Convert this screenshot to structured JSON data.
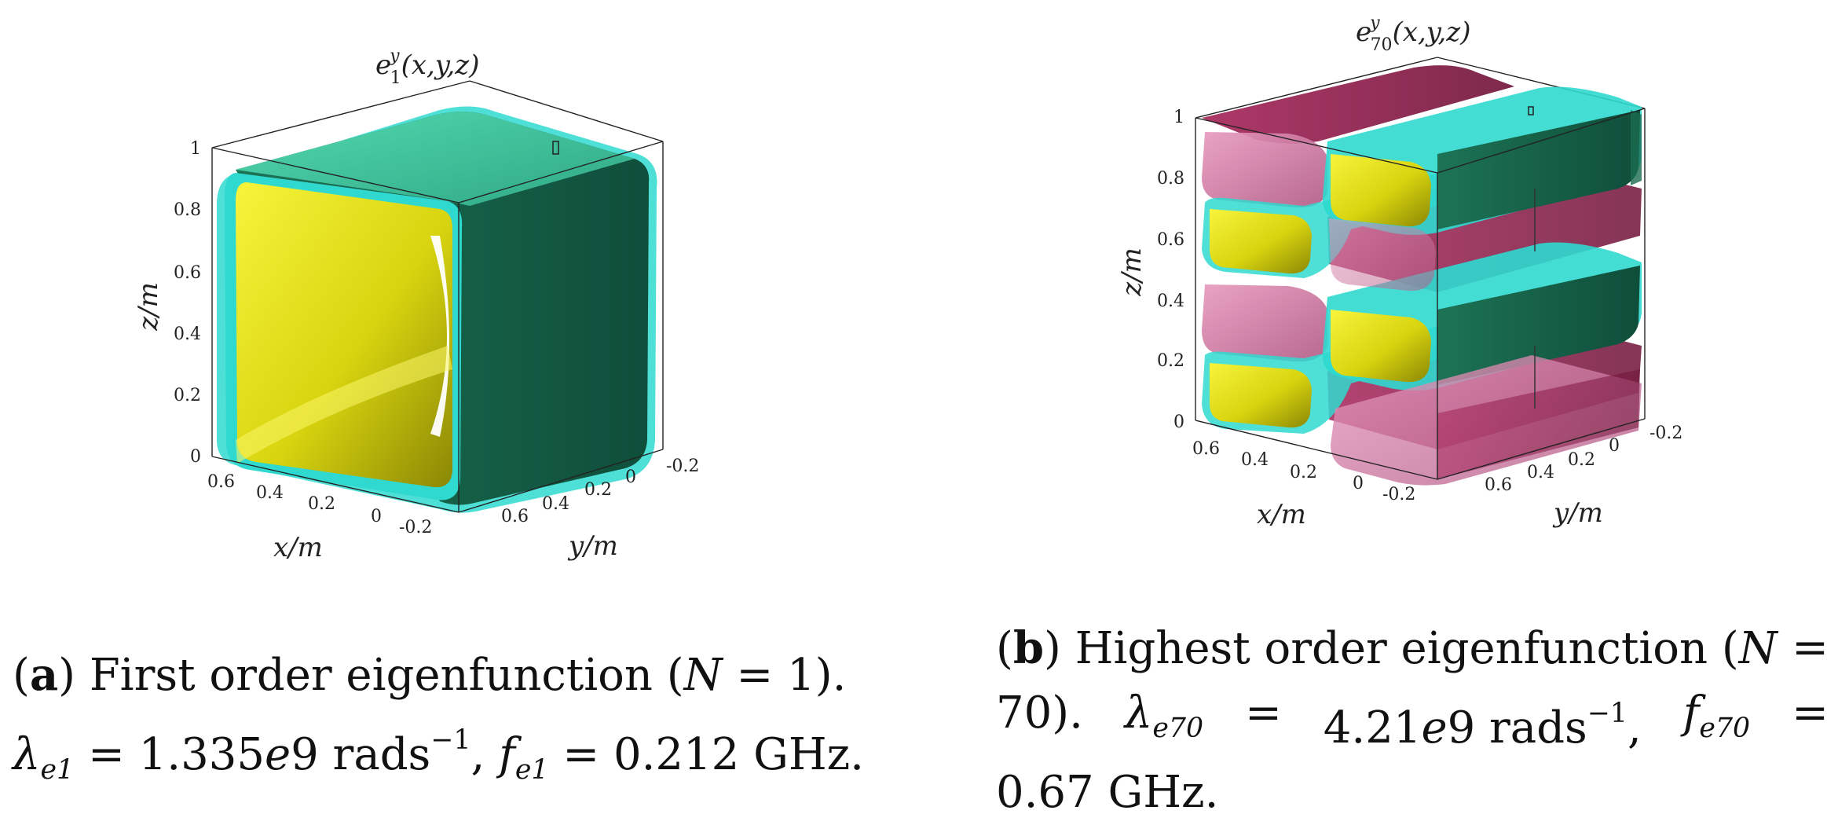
{
  "panels": [
    {
      "title": "e",
      "title_sup": "y",
      "title_sub": "1",
      "title_args": "(x,y,z)",
      "x_label": "x/m",
      "y_label": "y/m",
      "z_label": "z/m",
      "z_ticks": [
        "0",
        "0.2",
        "0.4",
        "0.6",
        "0.8",
        "1"
      ],
      "x_ticks": [
        "0.6",
        "0.4",
        "0.2",
        "0",
        "-0.2"
      ],
      "y_ticks": [
        "0.6",
        "0.4",
        "0.2",
        "0",
        "-0.2"
      ]
    },
    {
      "title": "e",
      "title_sup": "y",
      "title_sub": "70",
      "title_args": "(x,y,z)",
      "x_label": "x/m",
      "y_label": "y/m",
      "z_label": "z/m",
      "z_ticks": [
        "0",
        "0.2",
        "0.4",
        "0.6",
        "0.8",
        "1"
      ],
      "x_ticks": [
        "0.6",
        "0.4",
        "0.2",
        "0",
        "-0.2"
      ],
      "y_ticks": [
        "0.6",
        "0.4",
        "0.2",
        "0",
        "-0.2"
      ]
    }
  ],
  "captions": {
    "a": {
      "label": "a",
      "text": "First order eigenfunction (",
      "n_sym": "N",
      "n_val": " = 1).",
      "lambda": "λ",
      "lambda_sub": "e1",
      "lambda_val": " = 1.335",
      "e_sym": "e",
      "lambda_tail": "9 rads",
      "unit_sup": "−1",
      "f_sym": "f",
      "f_sub": "e1",
      "f_val": " = 0.212 GHz."
    },
    "b": {
      "label": "b",
      "text": "Highest order eigenfunction (",
      "n_sym": "N",
      "eq": "=",
      "n_val": "70).",
      "lambda": "λ",
      "lambda_sub": "e70",
      "lambda_val": "4.21",
      "e_sym": "e",
      "lambda_tail": "9 rads",
      "unit_sup": "−1",
      "f_sym": "f",
      "f_sub": "e70",
      "f_val": "0.67 GHz."
    }
  },
  "colors": {
    "teal": "#2fd9cf",
    "green_front": "#3cc892",
    "green_dark": "#155e45",
    "yellow": "#e8e41a",
    "yellow_dark": "#7d7a06",
    "pink": "#cf6f9c",
    "magenta": "#8e1848",
    "axis": "#222222"
  }
}
